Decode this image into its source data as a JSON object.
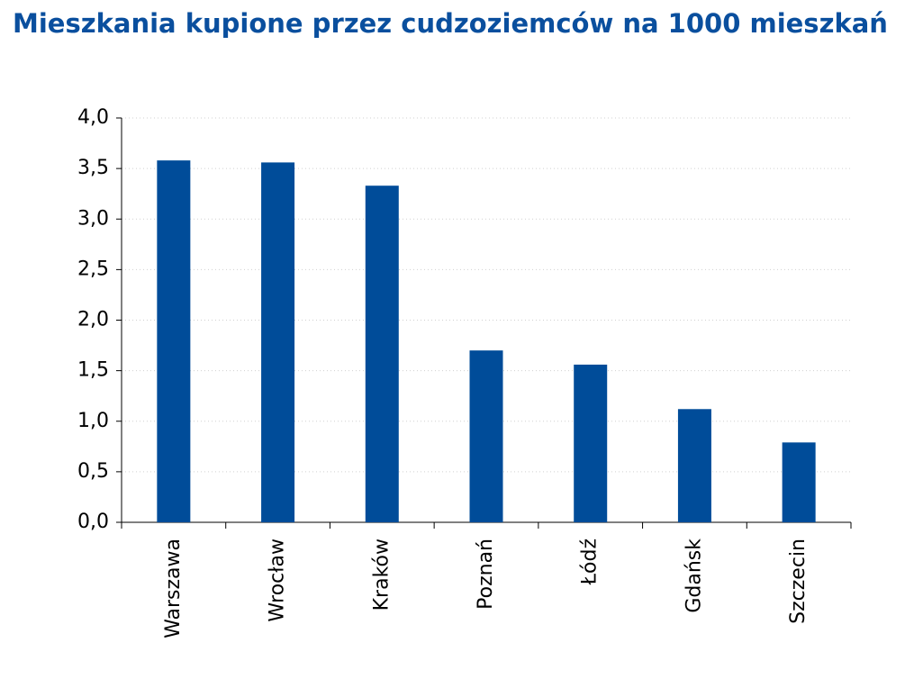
{
  "chart_data": {
    "type": "bar",
    "title": "Mieszkania kupione przez cudzoziemców na 1000 mieszkań",
    "categories": [
      "Warszawa",
      "Wrocław",
      "Kraków",
      "Poznań",
      "Łódź",
      "Gdańsk",
      "Szczecin"
    ],
    "values": [
      3.58,
      3.56,
      3.33,
      1.7,
      1.56,
      1.12,
      0.79
    ],
    "color": "#004c99",
    "ylim": [
      0,
      4
    ],
    "yticks": [
      {
        "value": 0,
        "label": "0,0"
      },
      {
        "value": 0.5,
        "label": "0,5"
      },
      {
        "value": 1,
        "label": "1,0"
      },
      {
        "value": 1.5,
        "label": "1,5"
      },
      {
        "value": 2,
        "label": "2,0"
      },
      {
        "value": 2.5,
        "label": "2,5"
      },
      {
        "value": 3,
        "label": "3,0"
      },
      {
        "value": 3.5,
        "label": "3,5"
      },
      {
        "value": 4,
        "label": "4,0"
      }
    ],
    "grid": true
  }
}
